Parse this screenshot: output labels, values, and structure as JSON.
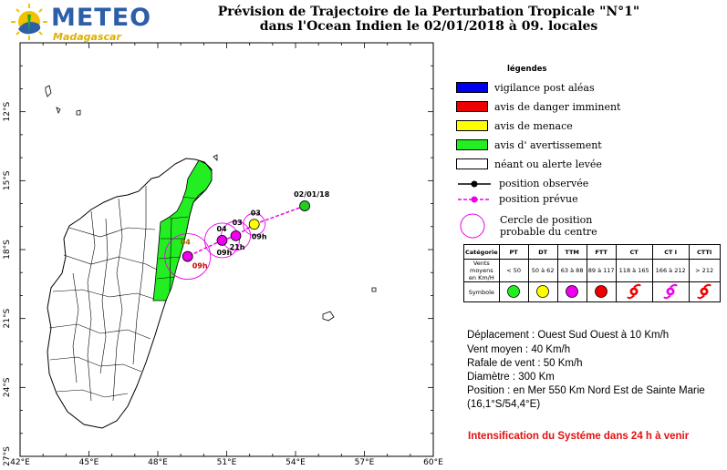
{
  "header": {
    "logo_text": "METEO",
    "logo_subtext": "Madagascar",
    "title_line1": "Prévision de Trajectoire de la Perturbation Tropicale \"N°1\"",
    "title_line2": "dans l'Ocean Indien  le  02/01/2018 à 09. locales"
  },
  "map": {
    "lat_labels": [
      "12°S",
      "15°S",
      "18°S",
      "21°S",
      "24°S",
      "27°S"
    ],
    "lon_labels": [
      "42°E",
      "45°E",
      "48°E",
      "51°E",
      "54°E",
      "57°E",
      "60°E"
    ],
    "track_points": [
      {
        "label": "02/01/18",
        "kind": "observed",
        "color": "#22cc22",
        "lon": 54.4,
        "lat": -16.1
      },
      {
        "label": "03",
        "time": "09h",
        "kind": "forecast",
        "color": "#ffff00",
        "lon": 52.2,
        "lat": -16.9
      },
      {
        "label": "03",
        "time": "21h",
        "kind": "forecast",
        "color": "#ee00ee",
        "lon": 51.4,
        "lat": -17.4
      },
      {
        "label": "04",
        "time": "09h",
        "kind": "forecast",
        "color": "#ee00ee",
        "lon": 50.8,
        "lat": -17.6
      },
      {
        "label": "04",
        "time": "09h",
        "kind": "forecast",
        "color": "#ee00ee",
        "lon": 49.3,
        "lat": -18.3
      }
    ],
    "green_alert_color": "#22ee22",
    "track_color": "#ee00ee"
  },
  "legend": {
    "title": "légendes",
    "items": [
      {
        "label": "vigilance post aléas",
        "color": "#0000ee"
      },
      {
        "label": "avis de danger imminent",
        "color": "#ee0000"
      },
      {
        "label": "avis de menace",
        "color": "#ffff00"
      },
      {
        "label": "avis d' avertissement",
        "color": "#22ee22"
      },
      {
        "label": "néant ou alerte levée",
        "color": "#ffffff"
      }
    ],
    "observed_label": "position observée",
    "forecast_label": "position prévue",
    "circle_label_1": "Cercle de position",
    "circle_label_2": "probable du centre"
  },
  "symbol_table": {
    "row1_header": "Catégorie",
    "row2_header": "Vents moyens en Km/H",
    "row3_header": "Symbole",
    "categories": [
      "PT",
      "DT",
      "TTM",
      "FTT",
      "CT",
      "CT I",
      "CTTI"
    ],
    "winds": [
      "< 50",
      "50 à 62",
      "63 à 88",
      "89 à 117",
      "118 à 165",
      "166 à 212",
      "> 212"
    ],
    "symbol_colors": [
      "#22ee22",
      "#ffff00",
      "#ee00ee",
      "#ee0000",
      "#ee0000",
      "#ee00ee",
      "#ee0000"
    ]
  },
  "info": {
    "deplacement": "Déplacement :  Ouest Sud Ouest à 10  Km/h",
    "vent": "Vent moyen      : 40  Km/h",
    "rafale": "Rafale de vent  : 50  Km/h",
    "diametre": "Diamètre           : 300 Km",
    "position": "Position : en Mer 550 Km Nord Est de Sainte Marie",
    "coords": "(16,1°S/54,4°E)"
  },
  "alert": "Intensification du Systéme dans 24 h à venir"
}
